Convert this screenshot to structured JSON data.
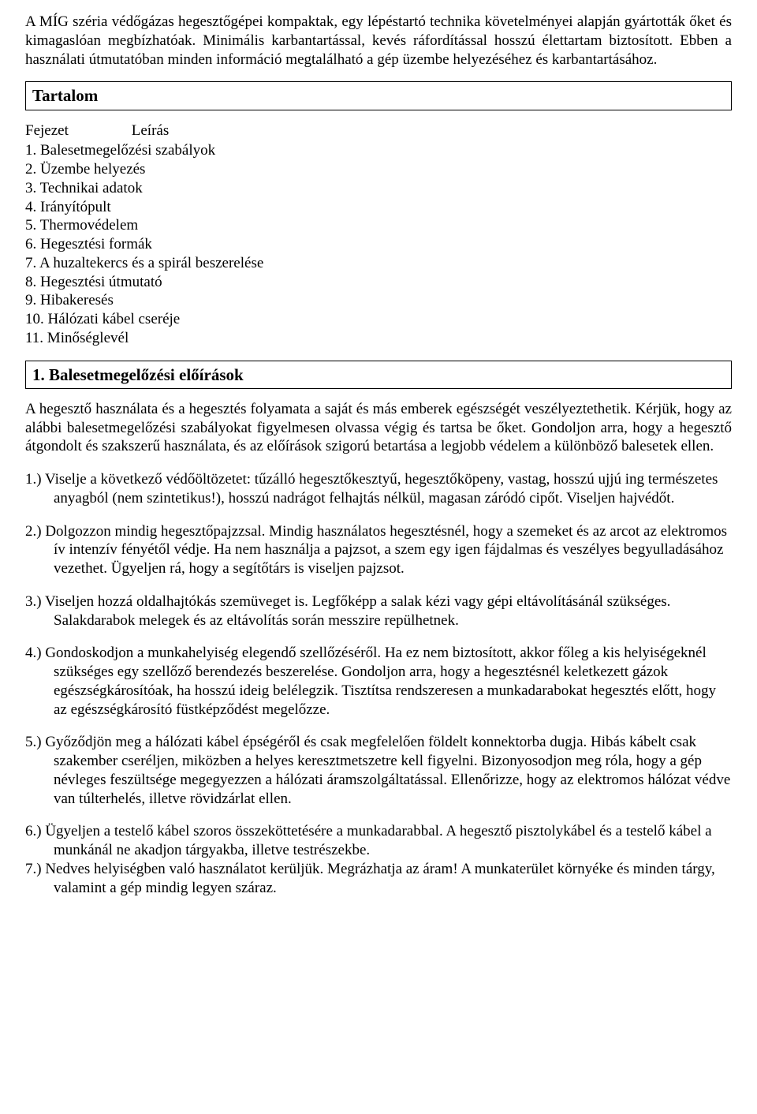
{
  "intro": "A MÍG széria védőgázas hegesztőgépei kompaktak, egy lépéstartó technika követelményei alapján gyártották őket és kimagaslóan megbízhatóak. Minimális karbantartással, kevés ráfordítással hosszú élettartam biztosított. Ebben a használati útmutatóban minden információ megtalálható a gép üzembe helyezéséhez és karbantartásához.",
  "toc": {
    "title": "Tartalom",
    "col1": "Fejezet",
    "col2": "Leírás",
    "items": [
      "1. Balesetmegelőzési szabályok",
      "2. Üzembe helyezés",
      "3. Technikai adatok",
      "4. Irányítópult",
      "5. Thermovédelem",
      "6. Hegesztési formák",
      "7. A huzaltekercs és a spirál beszerelése",
      "8. Hegesztési útmutató",
      "9. Hibakeresés",
      "10. Hálózati kábel cseréje",
      "11. Minőséglevél"
    ]
  },
  "section1": {
    "title": "1. Balesetmegelőzési előírások",
    "intro": "A hegesztő használata és a hegesztés folyamata a saját és más emberek egészségét veszélyeztethetik. Kérjük, hogy az alábbi balesetmegelőzési szabályokat figyelmesen olvassa végig és tartsa be őket. Gondoljon arra, hogy a hegesztő átgondolt és szakszerű használata, és az előírások szigorú betartása a legjobb védelem a különböző balesetek ellen.",
    "items": [
      "1.) Viselje a következő védőöltözetet: tűzálló hegesztőkesztyű, hegesztőköpeny, vastag, hosszú ujjú ing természetes anyagból (nem szintetikus!), hosszú nadrágot felhajtás nélkül, magasan záródó cipőt. Viseljen hajvédőt.",
      "2.) Dolgozzon mindig hegesztőpajzzsal. Mindig használatos hegesztésnél, hogy a szemeket és az arcot az elektromos ív intenzív fényétől védje. Ha nem használja a pajzsot, a szem egy igen fájdalmas és veszélyes begyulladásához vezethet. Ügyeljen rá, hogy a segítőtárs is viseljen pajzsot.",
      "3.) Viseljen hozzá oldalhajtókás szemüveget is. Legfőképp a salak kézi vagy gépi eltávolításánál szükséges. Salakdarabok melegek és az eltávolítás során messzire repülhetnek.",
      "4.) Gondoskodjon a munkahelyiség elegendő szellőzéséről. Ha ez nem biztosított, akkor főleg a kis helyiségeknél szükséges egy szellőző berendezés beszerelése. Gondoljon arra, hogy a hegesztésnél keletkezett gázok egészségkárosítóak, ha hosszú ideig belélegzik. Tisztítsa rendszeresen a munkadarabokat hegesztés előtt, hogy az egészségkárosító füstképződést megelőzze.",
      "5.) Győződjön meg a hálózati kábel épségéről és csak megfelelően földelt konnektorba dugja. Hibás kábelt csak szakember cseréljen, miközben a helyes keresztmetszetre kell figyelni. Bizonyosodjon meg róla, hogy a gép névleges feszültsége megegyezzen a hálózati áramszolgáltatással. Ellenőrizze, hogy az elektromos hálózat védve van túlterhelés, illetve rövidzárlat ellen.",
      "6.) Ügyeljen a testelő kábel szoros összeköttetésére a munkadarabbal. A hegesztő pisztolykábel és a testelő kábel a munkánál ne akadjon tárgyakba, illetve testrészekbe.",
      "7.) Nedves helyiségben való használatot kerüljük. Megrázhatja az áram! A munkaterület környéke és minden tárgy, valamint a gép mindig legyen száraz."
    ]
  }
}
